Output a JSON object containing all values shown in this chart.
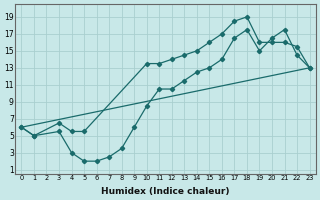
{
  "xlabel": "Humidex (Indice chaleur)",
  "background_color": "#c8e8e8",
  "grid_color": "#aacfcf",
  "line_color": "#1a6b6b",
  "xlim": [
    -0.5,
    23.5
  ],
  "ylim": [
    0.5,
    20.5
  ],
  "xticks": [
    0,
    1,
    2,
    3,
    4,
    5,
    6,
    7,
    8,
    9,
    10,
    11,
    12,
    13,
    14,
    15,
    16,
    17,
    18,
    19,
    20,
    21,
    22,
    23
  ],
  "yticks": [
    1,
    3,
    5,
    7,
    9,
    11,
    13,
    15,
    17,
    19
  ],
  "line1_x": [
    0,
    1,
    3,
    4,
    5,
    10,
    11,
    12,
    13,
    14,
    15,
    16,
    17,
    18,
    19,
    20,
    21,
    22,
    23
  ],
  "line1_y": [
    6,
    5,
    6.5,
    5.5,
    5.5,
    13.5,
    13.5,
    14.0,
    14.5,
    15.0,
    16.0,
    17.0,
    18.5,
    19.0,
    16.0,
    16.0,
    16.0,
    15.5,
    13.0
  ],
  "line2_x": [
    0,
    1,
    3,
    4,
    5,
    6,
    7,
    8,
    9,
    10,
    11,
    12,
    13,
    14,
    15,
    16,
    17,
    18,
    19,
    20,
    21,
    22,
    23
  ],
  "line2_y": [
    6,
    5,
    5.5,
    3.0,
    2.0,
    2.0,
    2.5,
    3.5,
    6.0,
    8.5,
    10.5,
    10.5,
    11.5,
    12.5,
    13.0,
    14.0,
    16.5,
    17.5,
    15.0,
    16.5,
    17.5,
    14.5,
    13.0
  ],
  "line3_x": [
    0,
    23
  ],
  "line3_y": [
    6,
    13.0
  ]
}
